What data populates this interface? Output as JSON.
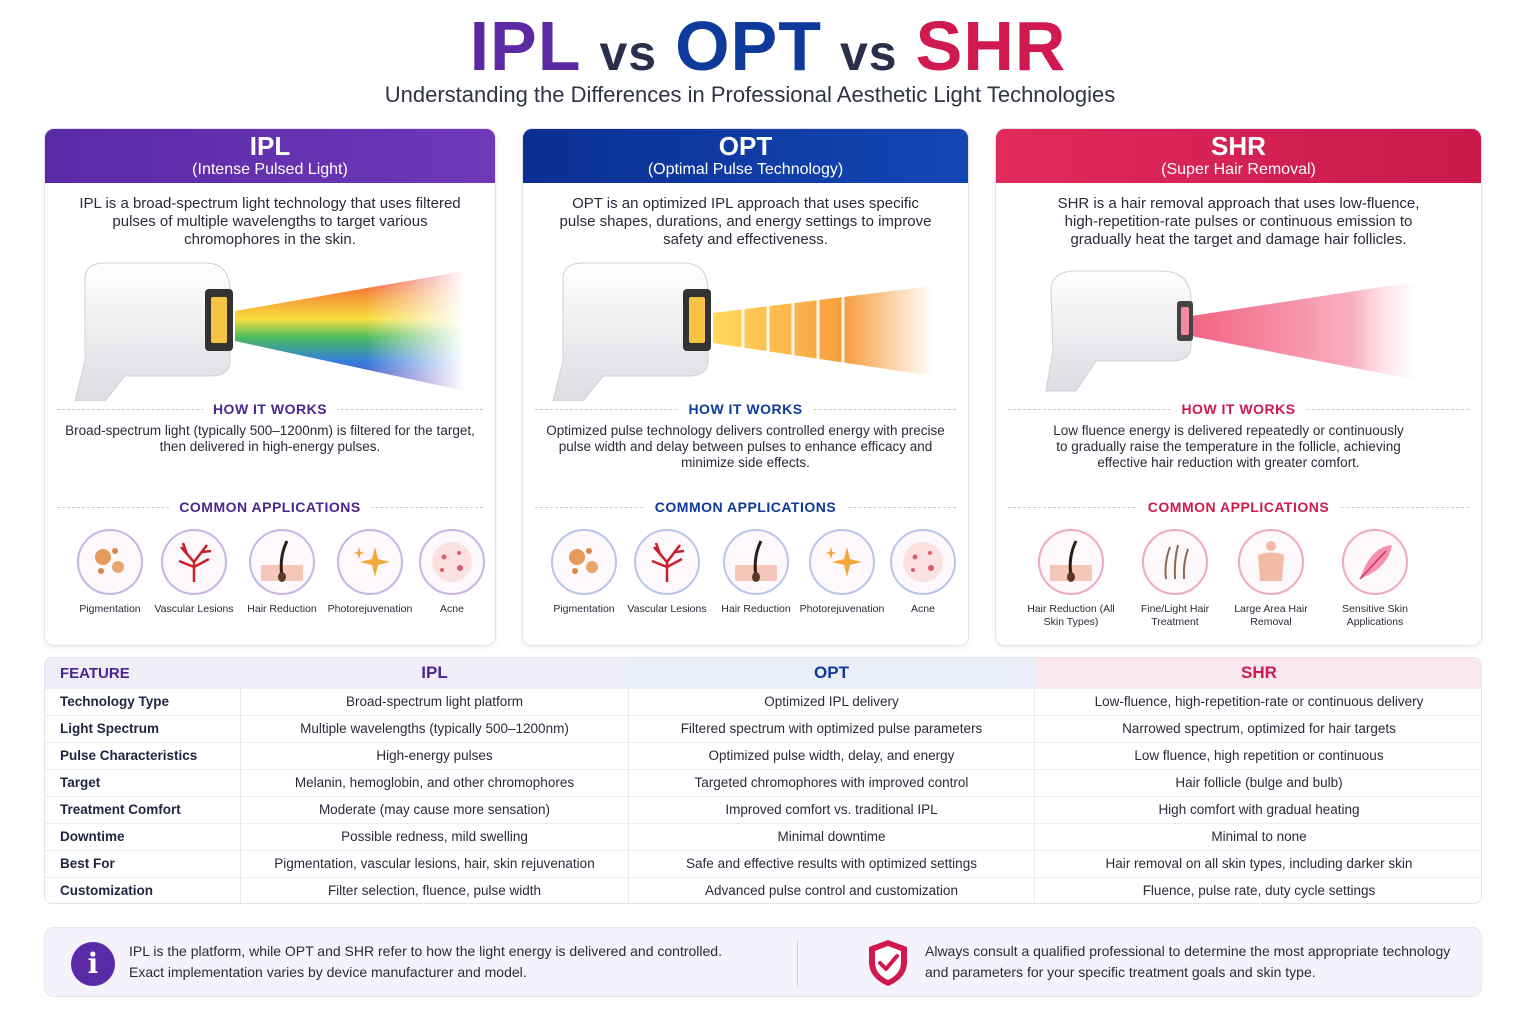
{
  "header": {
    "title_ipl": "IPL",
    "title_vs1": "vs",
    "title_opt": "OPT",
    "title_vs2": "vs",
    "title_shr": "SHR",
    "subtitle": "Understanding the Differences in Professional Aesthetic Light Technologies"
  },
  "cards": {
    "ipl": {
      "title": "IPL",
      "subtitle": "(Intense Pulsed Light)",
      "description": "IPL is a broad-spectrum light technology that uses filtered pulses of multiple wavelengths to target various chromophores in the skin.",
      "how_title": "HOW IT WORKS",
      "how_text": "Broad-spectrum light (typically 500–1200nm) is filtered for the target, then delivered in high-energy pulses.",
      "apps_title": "COMMON APPLICATIONS",
      "apps": [
        "Pigmentation",
        "Vascular Lesions",
        "Hair Reduction",
        "Photorejuvenation",
        "Acne"
      ]
    },
    "opt": {
      "title": "OPT",
      "subtitle": "(Optimal Pulse Technology)",
      "description": "OPT is an optimized IPL approach that uses specific pulse shapes, durations, and energy settings to improve safety and effectiveness.",
      "how_title": "HOW IT WORKS",
      "how_text": "Optimized pulse technology delivers controlled energy with precise pulse width and delay between pulses to enhance efficacy and minimize side effects.",
      "apps_title": "COMMON APPLICATIONS",
      "apps": [
        "Pigmentation",
        "Vascular Lesions",
        "Hair Reduction",
        "Photorejuvenation",
        "Acne"
      ]
    },
    "shr": {
      "title": "SHR",
      "subtitle": "(Super Hair Removal)",
      "description": "SHR is a hair removal approach that uses low-fluence, high-repetition-rate pulses or continuous emission to gradually heat the target and damage hair follicles.",
      "how_title": "HOW IT WORKS",
      "how_text": "Low fluence energy is delivered repeatedly or continuously to gradually raise the temperature in the follicle, achieving effective hair reduction with greater comfort.",
      "apps_title": "COMMON APPLICATIONS",
      "apps": [
        "Hair Reduction (All Skin Types)",
        "Fine/Light Hair Treatment",
        "Large Area Hair Removal",
        "Sensitive Skin Applications"
      ]
    }
  },
  "table": {
    "headers": [
      "FEATURE",
      "IPL",
      "OPT",
      "SHR"
    ],
    "rows": [
      [
        "Technology Type",
        "Broad-spectrum light platform",
        "Optimized IPL delivery",
        "Low-fluence, high-repetition-rate or continuous delivery"
      ],
      [
        "Light Spectrum",
        "Multiple wavelengths (typically 500–1200nm)",
        "Filtered spectrum with optimized pulse parameters",
        "Narrowed spectrum, optimized for hair targets"
      ],
      [
        "Pulse Characteristics",
        "High-energy pulses",
        "Optimized pulse width, delay, and energy",
        "Low fluence, high repetition or continuous"
      ],
      [
        "Target",
        "Melanin, hemoglobin, and other chromophores",
        "Targeted chromophores with improved control",
        "Hair follicle (bulge and bulb)"
      ],
      [
        "Treatment Comfort",
        "Moderate (may cause more sensation)",
        "Improved comfort vs. traditional IPL",
        "High comfort with gradual heating"
      ],
      [
        "Downtime",
        "Possible redness, mild swelling",
        "Minimal downtime",
        "Minimal to none"
      ],
      [
        "Best For",
        "Pigmentation, vascular lesions, hair, skin rejuvenation",
        "Safe and effective results with optimized settings",
        "Hair removal on all skin types, including darker skin"
      ],
      [
        "Customization",
        "Filter selection, fluence, pulse width",
        "Advanced pulse control and customization",
        "Fluence, pulse rate, duty cycle settings"
      ]
    ]
  },
  "footer": {
    "info_text": "IPL is the platform, while OPT and SHR refer to how the light energy is delivered and controlled. Exact implementation varies by device manufacturer and model.",
    "consult_text": "Always consult a qualified professional to determine the most appropriate technology and parameters for your specific treatment goals and skin type."
  },
  "colors": {
    "ipl": "#5b2aa3",
    "opt": "#0e3a9c",
    "shr": "#d0194f"
  }
}
